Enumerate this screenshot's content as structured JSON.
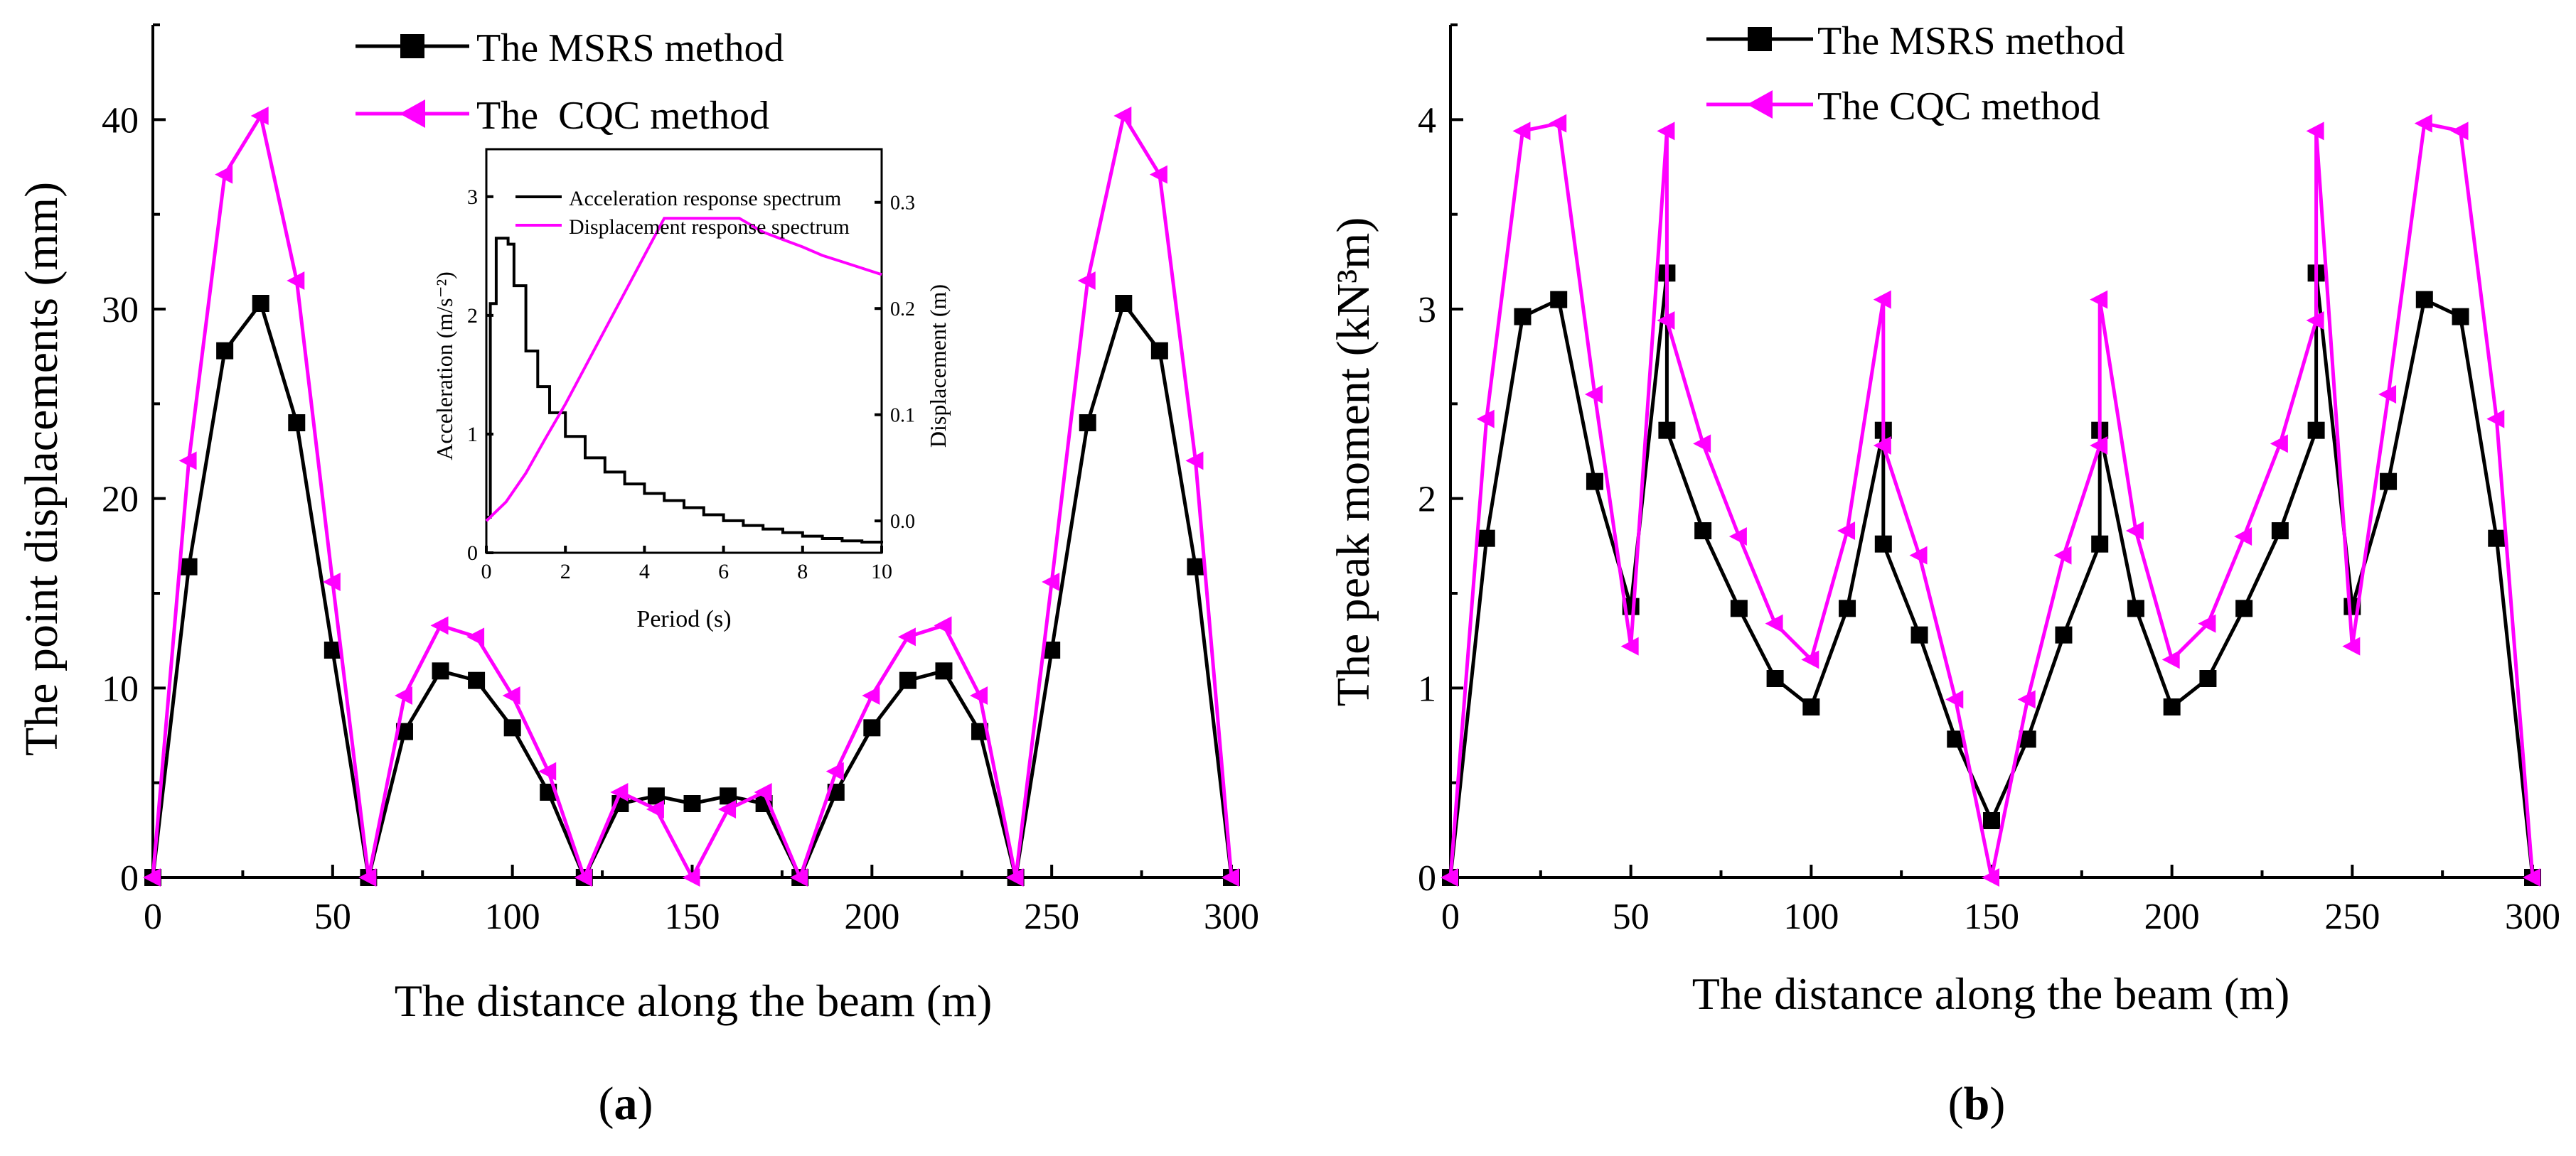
{
  "chart_data": [
    {
      "type": "line",
      "panel_label": "a",
      "xlabel": "The distance along the beam (m)",
      "ylabel": "The point displacements (mm)",
      "xlim": [
        0,
        300
      ],
      "ylim": [
        0,
        45
      ],
      "xticks": [
        0,
        50,
        100,
        150,
        200,
        250,
        300
      ],
      "yticks": [
        0,
        10,
        20,
        30,
        40
      ],
      "xtick_labels": [
        "0",
        "50",
        "100",
        "150",
        "200",
        "250",
        "300"
      ],
      "ytick_labels": [
        "0",
        "10",
        "20",
        "30",
        "40"
      ],
      "legend_position": "top-center",
      "series": [
        {
          "name": "The MSRS method",
          "color": "#000000",
          "marker": "square",
          "x": [
            0,
            10,
            20,
            30,
            40,
            50,
            60,
            70,
            80,
            90,
            100,
            110,
            120,
            130,
            140,
            150,
            160,
            170,
            180,
            190,
            200,
            210,
            220,
            230,
            240,
            250,
            260,
            270,
            280,
            290,
            300
          ],
          "y": [
            0,
            16.4,
            27.8,
            30.3,
            24.0,
            12.0,
            0,
            7.7,
            10.9,
            10.4,
            7.9,
            4.5,
            0,
            3.9,
            4.3,
            3.9,
            4.3,
            3.9,
            0,
            4.5,
            7.9,
            10.4,
            10.9,
            7.7,
            0,
            12.0,
            24.0,
            30.3,
            27.8,
            16.4,
            0
          ]
        },
        {
          "name": "The  CQC method",
          "color": "#ff00ff",
          "marker": "triangle-left",
          "x": [
            0,
            10,
            20,
            30,
            40,
            50,
            60,
            70,
            80,
            90,
            100,
            110,
            120,
            130,
            140,
            150,
            160,
            170,
            180,
            190,
            200,
            210,
            220,
            230,
            240,
            250,
            260,
            270,
            280,
            290,
            300
          ],
          "y": [
            0,
            22.0,
            37.1,
            40.2,
            31.5,
            15.6,
            0,
            9.6,
            13.3,
            12.7,
            9.6,
            5.6,
            0,
            4.5,
            3.6,
            0,
            3.6,
            4.5,
            0,
            5.6,
            9.6,
            12.7,
            13.3,
            9.6,
            0,
            15.6,
            31.5,
            40.2,
            37.1,
            22.0,
            0
          ]
        }
      ],
      "inset": {
        "type": "line",
        "xlabel": "Period (s)",
        "ylabel_left": "Acceleration  (m/s⁻²)",
        "ylabel_right": "Displacement (m)",
        "xlim": [
          0,
          10
        ],
        "ylim_left": [
          0,
          3.4
        ],
        "ylim_right": [
          -0.03,
          0.35
        ],
        "xticks": [
          0,
          2,
          4,
          6,
          8,
          10
        ],
        "yticks_left": [
          0,
          1,
          2,
          3
        ],
        "yticks_right": [
          0.0,
          0.1,
          0.2,
          0.3
        ],
        "xtick_labels": [
          "0",
          "2",
          "4",
          "6",
          "8",
          "10"
        ],
        "ytick_labels_left": [
          "0",
          "1",
          "2",
          "3"
        ],
        "ytick_labels_right": [
          "0.0",
          "0.1",
          "0.2",
          "0.3"
        ],
        "series": [
          {
            "name": "Acceleration response spectrum",
            "color": "#000000",
            "axis": "left",
            "x": [
              0,
              0.1,
              0.25,
              0.45,
              0.55,
              0.7,
              1.0,
              1.3,
              1.6,
              2.0,
              2.5,
              3.0,
              3.5,
              4.0,
              4.5,
              5.0,
              5.5,
              6.0,
              6.5,
              7.0,
              7.5,
              8.0,
              8.5,
              9.0,
              9.5,
              10
            ],
            "y": [
              0.3,
              2.1,
              2.65,
              2.65,
              2.6,
              2.25,
              1.7,
              1.4,
              1.18,
              0.98,
              0.8,
              0.68,
              0.58,
              0.5,
              0.44,
              0.38,
              0.32,
              0.27,
              0.23,
              0.2,
              0.17,
              0.14,
              0.12,
              0.1,
              0.09,
              0.08
            ]
          },
          {
            "name": "Displacement response spectrum",
            "color": "#ff00ff",
            "axis": "right",
            "x": [
              0,
              0.5,
              1,
              1.5,
              2,
              2.5,
              3,
              3.5,
              4,
              4.5,
              5,
              5.5,
              6,
              6.4,
              7,
              7.5,
              8,
              8.5,
              9,
              9.5,
              10
            ],
            "y": [
              0.0,
              0.018,
              0.045,
              0.078,
              0.11,
              0.145,
              0.18,
              0.215,
              0.25,
              0.285,
              0.285,
              0.285,
              0.285,
              0.285,
              0.272,
              0.265,
              0.258,
              0.25,
              0.244,
              0.238,
              0.232
            ]
          }
        ]
      }
    },
    {
      "type": "line",
      "panel_label": "b",
      "xlabel": "The distance along the beam (m)",
      "ylabel": "The peak moment (kN³m)",
      "xlim": [
        0,
        300
      ],
      "ylim": [
        0,
        4.5
      ],
      "xticks": [
        0,
        50,
        100,
        150,
        200,
        250,
        300
      ],
      "yticks": [
        0,
        1,
        2,
        3,
        4
      ],
      "xtick_labels": [
        "0",
        "50",
        "100",
        "150",
        "200",
        "250",
        "300"
      ],
      "ytick_labels": [
        "0",
        "1",
        "2",
        "3",
        "4"
      ],
      "legend_position": "top-center",
      "series": [
        {
          "name": "The MSRS method",
          "color": "#000000",
          "marker": "square",
          "x": [
            0,
            10,
            20,
            30,
            40,
            50,
            60,
            60,
            70,
            80,
            90,
            100,
            110,
            120,
            120,
            130,
            140,
            150,
            160,
            170,
            180,
            180,
            190,
            200,
            210,
            220,
            230,
            240,
            240,
            250,
            260,
            270,
            280,
            290,
            300
          ],
          "y": [
            0,
            1.79,
            2.96,
            3.05,
            2.09,
            1.43,
            3.19,
            2.36,
            1.83,
            1.42,
            1.05,
            0.9,
            1.42,
            2.36,
            1.76,
            1.28,
            0.73,
            0.3,
            0.73,
            1.28,
            1.76,
            2.36,
            1.42,
            0.9,
            1.05,
            1.42,
            1.83,
            2.36,
            3.19,
            1.43,
            2.09,
            3.05,
            2.96,
            1.79,
            0
          ]
        },
        {
          "name": "The CQC method",
          "color": "#ff00ff",
          "marker": "triangle-left",
          "x": [
            0,
            10,
            20,
            30,
            40,
            50,
            60,
            60,
            70,
            80,
            90,
            100,
            110,
            120,
            120,
            130,
            140,
            150,
            160,
            170,
            180,
            180,
            190,
            200,
            210,
            220,
            230,
            240,
            240,
            250,
            260,
            270,
            280,
            290,
            300
          ],
          "y": [
            0,
            2.42,
            3.94,
            3.98,
            2.55,
            1.22,
            3.94,
            2.94,
            2.29,
            1.8,
            1.34,
            1.15,
            1.83,
            3.05,
            2.28,
            1.7,
            0.94,
            0,
            0.94,
            1.7,
            2.28,
            3.05,
            1.83,
            1.15,
            1.34,
            1.8,
            2.29,
            2.94,
            3.94,
            1.22,
            2.55,
            3.98,
            3.94,
            2.42,
            0
          ]
        }
      ]
    }
  ]
}
